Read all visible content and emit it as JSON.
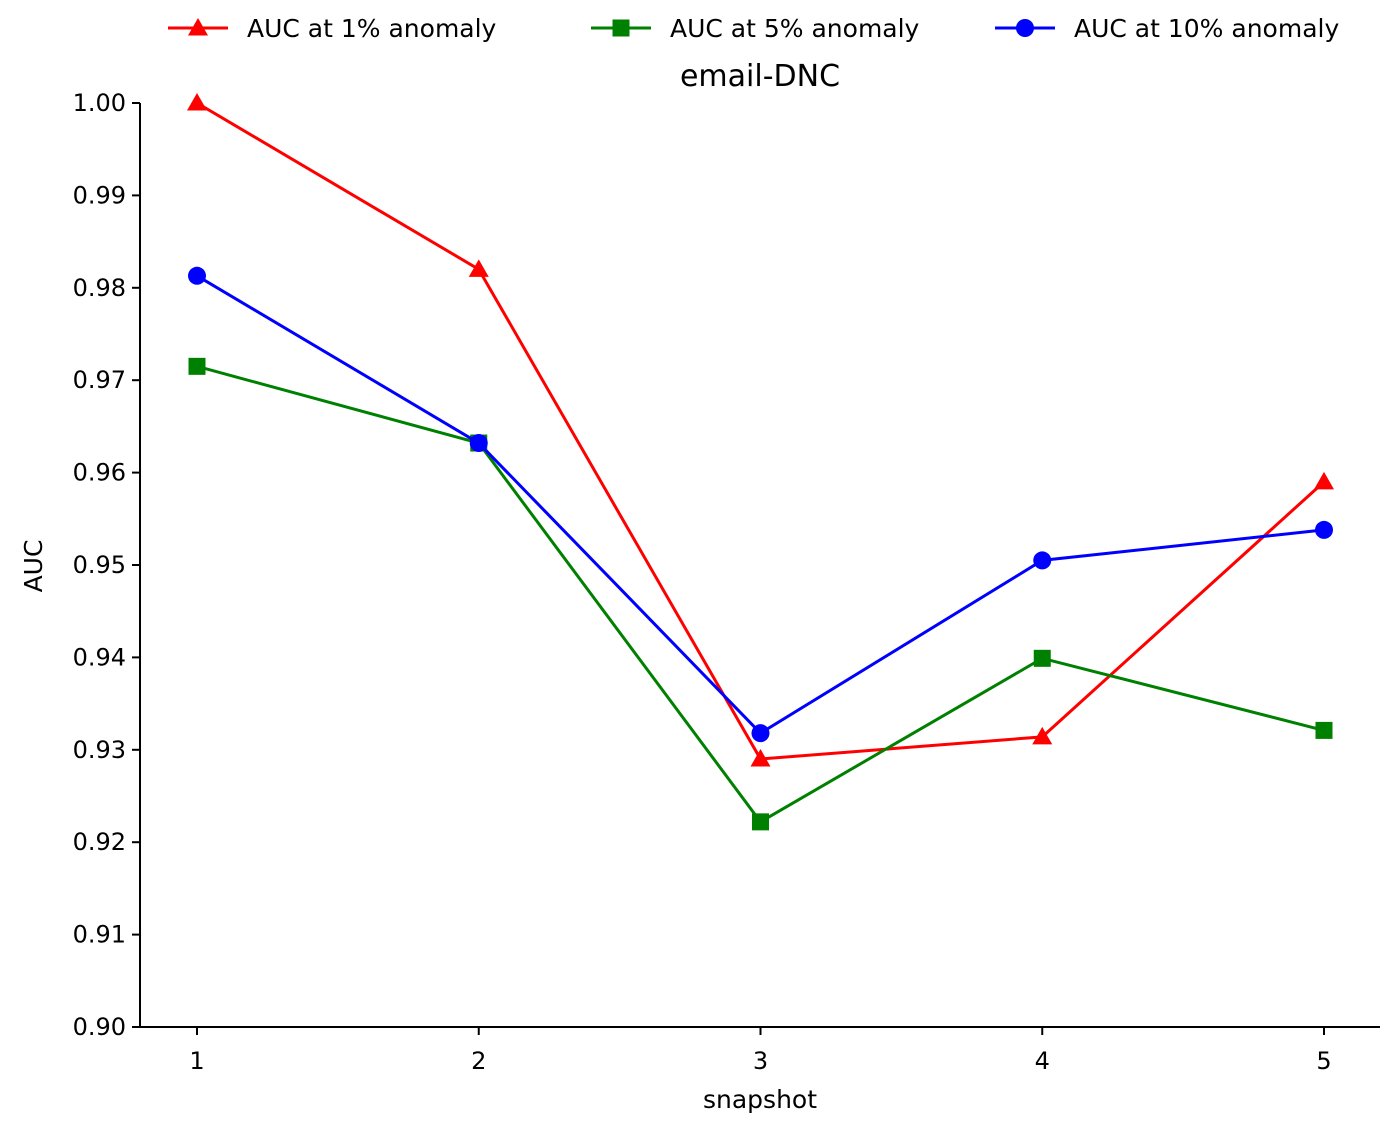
{
  "chart_data": {
    "type": "line",
    "title": "email-DNC",
    "xlabel": "snapshot",
    "ylabel": "AUC",
    "x": [
      1,
      2,
      3,
      4,
      5
    ],
    "xticks": [
      "1",
      "2",
      "3",
      "4",
      "5"
    ],
    "ylim": [
      0.9,
      1.0
    ],
    "yticks": [
      "0.90",
      "0.91",
      "0.92",
      "0.93",
      "0.94",
      "0.95",
      "0.96",
      "0.97",
      "0.98",
      "0.99",
      "1.00"
    ],
    "grid": false,
    "legend_position": "top",
    "series": [
      {
        "name": "AUC at 1% anomaly",
        "color": "#ff0000",
        "marker": "triangle",
        "values": [
          1.0,
          0.982,
          0.929,
          0.9314,
          0.959
        ]
      },
      {
        "name": "AUC at 5% anomaly",
        "color": "#008000",
        "marker": "square",
        "values": [
          0.9715,
          0.9632,
          0.9222,
          0.9399,
          0.9321
        ]
      },
      {
        "name": "AUC at 10% anomaly",
        "color": "#0000ff",
        "marker": "circle",
        "values": [
          0.9813,
          0.9632,
          0.9318,
          0.9505,
          0.9538
        ]
      }
    ]
  }
}
